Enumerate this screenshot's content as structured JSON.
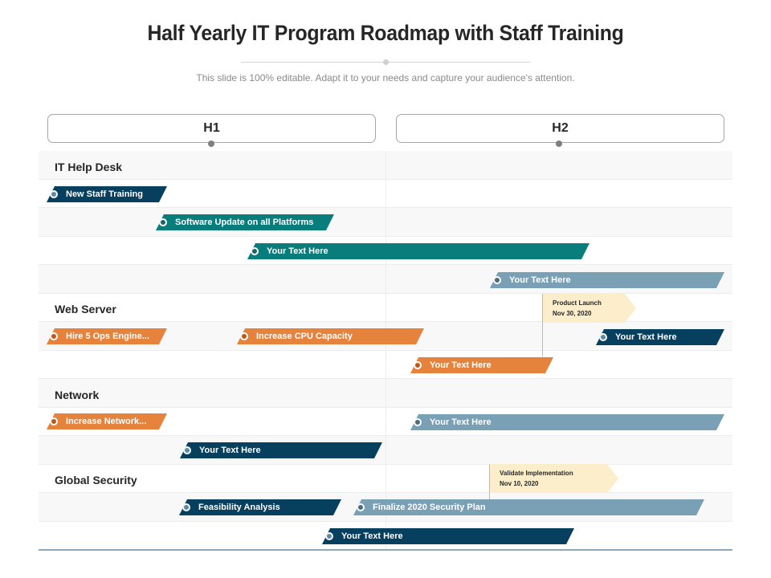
{
  "header": {
    "title": "Half Yearly IT Program Roadmap with Staff Training",
    "subtitle": "This slide is 100% editable. Adapt it to your needs and capture your audience's attention."
  },
  "halves": {
    "h1": "H1",
    "h2": "H2"
  },
  "sections": {
    "help_desk": "IT Help Desk",
    "web_server": "Web Server",
    "network": "Network",
    "security": "Global Security"
  },
  "bars": {
    "new_staff_training": "New Staff Training",
    "software_update": "Software Update on all Platforms",
    "helpdesk_text": "Your Text Here",
    "helpdesk_text2": "Your Text Here",
    "hire_ops": "Hire 5 Ops Engine...",
    "increase_cpu": "Increase CPU Capacity",
    "webserver_text_right": "Your Text Here",
    "webserver_text": "Your Text Here",
    "increase_network": "Increase Network...",
    "network_text_right": "Your Text Here",
    "network_text": "Your Text Here",
    "feasibility": "Feasibility Analysis",
    "finalize_security": "Finalize 2020 Security Plan",
    "security_text": "Your Text Here"
  },
  "milestones": {
    "product_launch": {
      "label": "Product Launch",
      "date": "Nov 30, 2020"
    },
    "validate": {
      "label": "Validate Implementation",
      "date": "Nov 10, 2020"
    }
  },
  "colors": {
    "navy": "#073f5e",
    "teal": "#087d7c",
    "orange": "#e5823c",
    "slate": "#7aa0b5",
    "milestone_bg": "#fdeecb",
    "milestone_line": "#e7b84a"
  }
}
